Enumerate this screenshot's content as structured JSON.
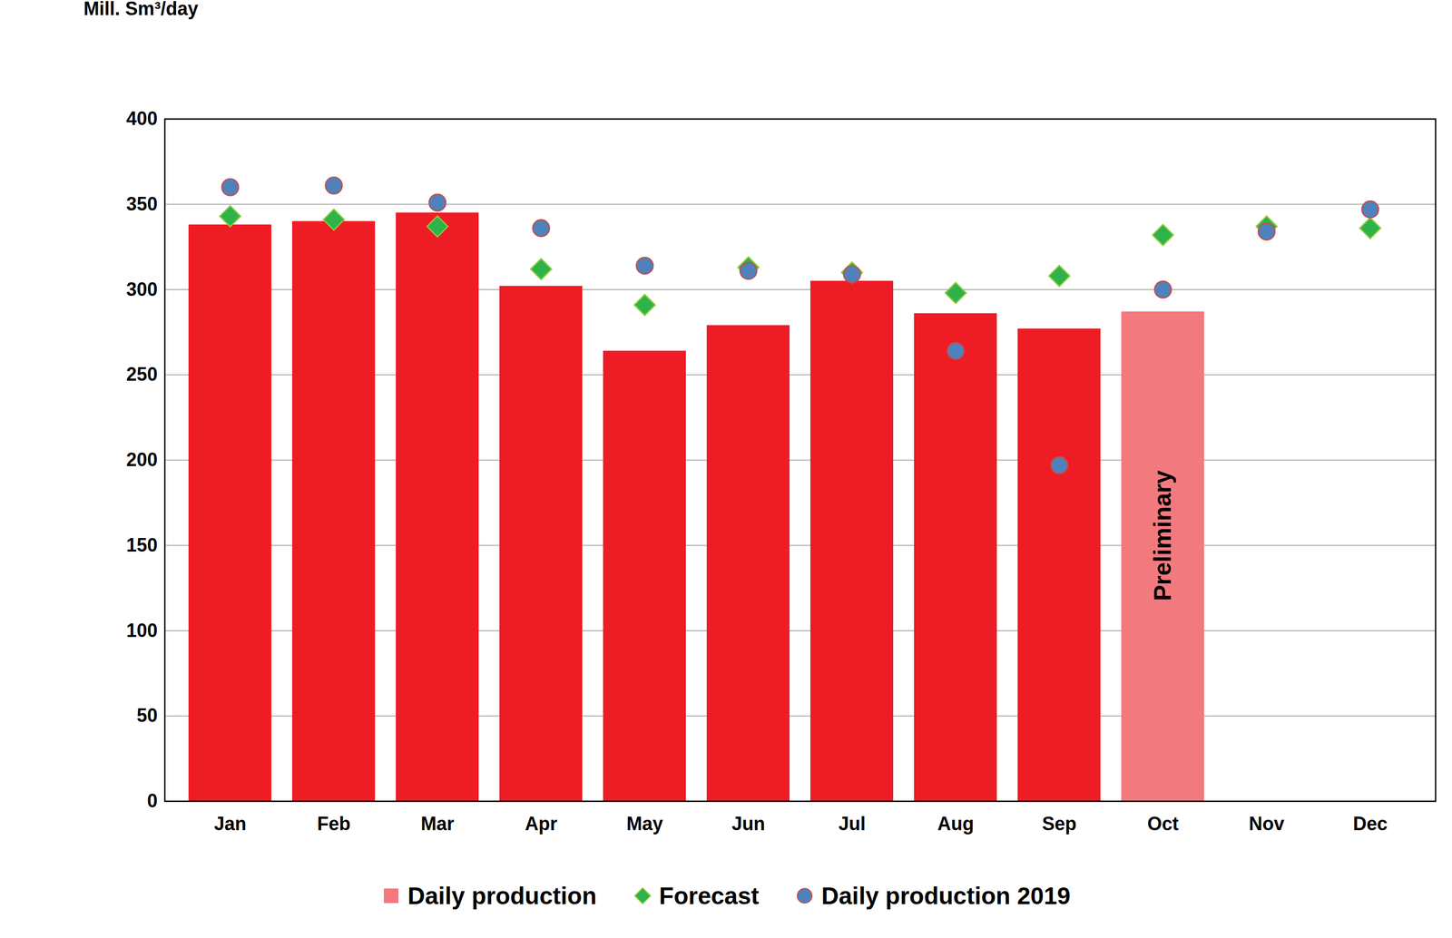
{
  "chart_data": {
    "type": "bar",
    "y_label": "Mill. Sm³/day",
    "categories": [
      "Jan",
      "Feb",
      "Mar",
      "Apr",
      "May",
      "Jun",
      "Jul",
      "Aug",
      "Sep",
      "Oct",
      "Nov",
      "Dec"
    ],
    "series": [
      {
        "name": "Daily production",
        "type": "bar",
        "color": "#f27a7e",
        "colors": [
          "#ee1c25",
          "#ee1c25",
          "#ee1c25",
          "#ee1c25",
          "#ee1c25",
          "#ee1c25",
          "#ee1c25",
          "#ee1c25",
          "#ee1c25",
          "#f27a7e",
          null,
          null
        ],
        "values": [
          338,
          340,
          345,
          302,
          264,
          279,
          305,
          286,
          277,
          287,
          null,
          null
        ]
      },
      {
        "name": "Forecast",
        "type": "scatter",
        "marker": "diamond",
        "color": "#2db34a",
        "values": [
          343,
          341,
          337,
          312,
          291,
          313,
          310,
          298,
          308,
          332,
          337,
          336
        ]
      },
      {
        "name": "Daily production 2019",
        "type": "scatter",
        "marker": "circle",
        "color": "#4f81bd",
        "values": [
          360,
          361,
          351,
          336,
          314,
          311,
          309,
          264,
          197,
          300,
          334,
          347
        ]
      }
    ],
    "annotations": [
      {
        "text": "Preliminary",
        "x": "Oct"
      }
    ],
    "ylim": [
      0,
      400
    ],
    "yticks": [
      0,
      50,
      100,
      150,
      200,
      250,
      300,
      350,
      400
    ],
    "grid": true,
    "legend": "bottom"
  }
}
